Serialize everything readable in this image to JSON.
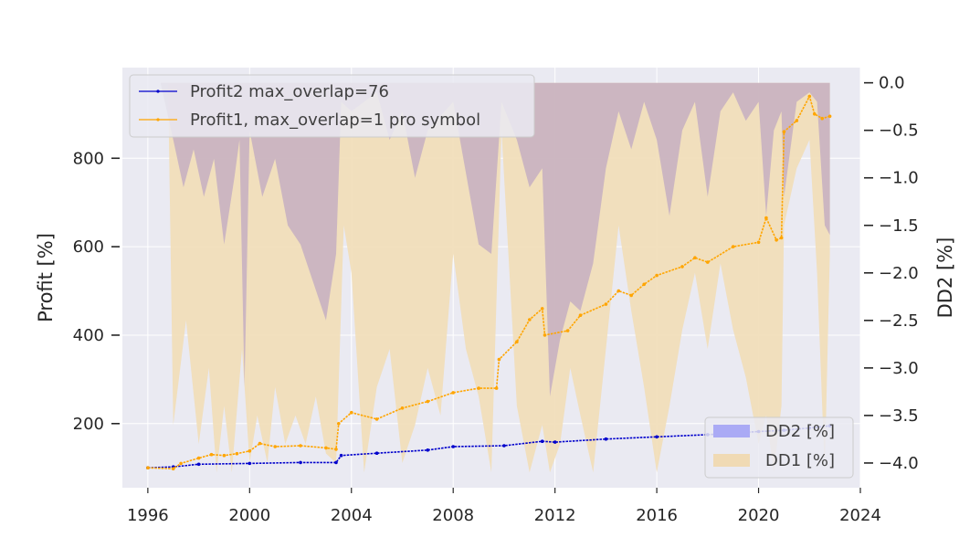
{
  "chart_data": {
    "type": "line",
    "xlim": [
      1995,
      2024
    ],
    "x_ticks": [
      1996,
      2000,
      2004,
      2008,
      2012,
      2016,
      2020,
      2024
    ],
    "left_axis": {
      "label": "Profit [%]",
      "ylim": [
        55,
        1005
      ],
      "ticks": [
        200,
        400,
        600,
        800
      ]
    },
    "right_axis": {
      "label": "DD2 [%]",
      "ylim": [
        -4.26,
        0.16
      ],
      "ticks": [
        0.0,
        -0.5,
        -1.0,
        -1.5,
        -2.0,
        -2.5,
        -3.0,
        -3.5,
        -4.0
      ]
    },
    "grid": true,
    "legend_top_left": [
      {
        "name": "Profit2 max_overlap=76",
        "color": "#0000cc"
      },
      {
        "name": "Profit1, max_overlap=1 pro symbol",
        "color": "#ffa500"
      }
    ],
    "legend_bottom_right": [
      {
        "name": "DD2 [%]",
        "color": "#aaaaf5"
      },
      {
        "name": "DD1 [%]",
        "color": "#f0dab4"
      }
    ],
    "colors": {
      "profit2": "#0000cc",
      "profit1": "#ffa500",
      "dd2": "#b8b4ee",
      "dd1": "#f1ddb8",
      "overlap": "#c6b0c2",
      "plot_bg": "#eaeaf2"
    },
    "series": [
      {
        "name": "Profit2 max_overlap=76",
        "axis": "left",
        "x": [
          1996.0,
          1997.0,
          1998.0,
          2000.0,
          2002.0,
          2003.4,
          2003.6,
          2005.0,
          2007.0,
          2008.0,
          2010.0,
          2011.5,
          2012.0,
          2014.0,
          2016.0,
          2018.0,
          2020.0,
          2021.0,
          2022.0,
          2022.8
        ],
        "y": [
          100,
          102,
          108,
          110,
          112,
          112,
          128,
          133,
          140,
          148,
          150,
          160,
          158,
          165,
          170,
          175,
          182,
          185,
          190,
          195
        ]
      },
      {
        "name": "Profit1, max_overlap=1 pro symbol",
        "axis": "left",
        "x": [
          1996.0,
          1997.0,
          1997.3,
          1998.0,
          1998.5,
          1999.0,
          1999.5,
          2000.0,
          2000.4,
          2001.0,
          2002.0,
          2003.0,
          2003.4,
          2003.5,
          2004.0,
          2005.0,
          2006.0,
          2007.0,
          2008.0,
          2009.0,
          2009.7,
          2009.8,
          2010.5,
          2011.0,
          2011.5,
          2011.6,
          2012.5,
          2013.0,
          2014.0,
          2014.5,
          2015.0,
          2015.5,
          2016.0,
          2017.0,
          2017.5,
          2018.0,
          2019.0,
          2020.0,
          2020.3,
          2020.7,
          2020.9,
          2021.0,
          2021.5,
          2022.0,
          2022.2,
          2022.5,
          2022.8
        ],
        "y": [
          100,
          98,
          110,
          122,
          130,
          128,
          132,
          138,
          155,
          148,
          150,
          145,
          142,
          200,
          225,
          210,
          235,
          250,
          270,
          280,
          280,
          345,
          385,
          435,
          460,
          400,
          410,
          445,
          470,
          500,
          490,
          515,
          535,
          555,
          575,
          565,
          600,
          610,
          665,
          615,
          620,
          860,
          885,
          940,
          900,
          890,
          895
        ]
      }
    ],
    "drawdown_series": [
      {
        "name": "DD2 [%]",
        "axis": "right",
        "x": [
          1996.5,
          1997.0,
          1997.4,
          1997.8,
          1998.2,
          1998.6,
          1999.0,
          1999.4,
          1999.6,
          1999.8,
          2000.0,
          2000.5,
          2001.0,
          2001.5,
          2002.0,
          2002.5,
          2003.0,
          2003.4,
          2003.6,
          2004.0,
          2005.0,
          2005.5,
          2006.0,
          2006.5,
          2007.0,
          2008.0,
          2009.0,
          2009.5,
          2009.9,
          2010.5,
          2011.0,
          2011.5,
          2011.8,
          2012.2,
          2012.6,
          2013.0,
          2013.5,
          2014.0,
          2014.5,
          2015.0,
          2015.5,
          2016.0,
          2016.5,
          2017.0,
          2017.5,
          2018.0,
          2018.5,
          2019.0,
          2019.5,
          2020.0,
          2020.3,
          2020.6,
          2020.9,
          2021.0,
          2021.5,
          2022.0,
          2022.3,
          2022.6,
          2022.8
        ],
        "y": [
          0.0,
          -0.6,
          -1.1,
          -0.7,
          -1.2,
          -0.8,
          -1.7,
          -1.0,
          -0.6,
          -3.2,
          -0.5,
          -1.2,
          -0.8,
          -1.5,
          -1.7,
          -2.1,
          -2.5,
          -1.8,
          -0.2,
          -0.3,
          -0.1,
          -0.6,
          -0.3,
          -1.0,
          -0.5,
          -0.2,
          -1.7,
          -1.8,
          -0.2,
          -0.6,
          -1.1,
          -0.9,
          -3.3,
          -2.7,
          -2.3,
          -2.4,
          -1.9,
          -0.9,
          -0.3,
          -0.7,
          -0.2,
          -0.6,
          -1.4,
          -0.5,
          -0.2,
          -1.2,
          -0.3,
          -0.1,
          -0.4,
          -0.2,
          -1.4,
          -0.5,
          -0.3,
          -1.2,
          -0.2,
          -0.1,
          -0.2,
          -1.5,
          -1.6
        ]
      },
      {
        "name": "DD1 [%]",
        "axis": "right",
        "x": [
          1996.8,
          1997.0,
          1997.5,
          1998.0,
          1998.4,
          1998.7,
          1999.0,
          1999.3,
          1999.7,
          2000.0,
          2000.3,
          2000.7,
          2001.0,
          2001.4,
          2001.8,
          2002.2,
          2002.6,
          2003.0,
          2003.4,
          2003.7,
          2004.0,
          2004.5,
          2005.0,
          2005.5,
          2006.0,
          2006.5,
          2007.0,
          2007.5,
          2008.0,
          2008.5,
          2009.0,
          2009.5,
          2009.9,
          2010.5,
          2011.0,
          2011.5,
          2011.8,
          2012.2,
          2012.6,
          2013.0,
          2013.5,
          2014.0,
          2014.5,
          2015.0,
          2015.5,
          2016.0,
          2016.5,
          2017.0,
          2017.5,
          2018.0,
          2018.5,
          2019.0,
          2019.5,
          2020.0,
          2020.3,
          2020.6,
          2020.9,
          2021.0,
          2021.5,
          2022.0,
          2022.3,
          2022.6,
          2022.8
        ],
        "y": [
          -0.1,
          -3.6,
          -2.5,
          -3.8,
          -3.0,
          -4.1,
          -3.4,
          -4.1,
          -2.8,
          -4.0,
          -3.5,
          -4.0,
          -3.2,
          -3.8,
          -3.5,
          -3.8,
          -3.3,
          -3.9,
          -4.0,
          -1.5,
          -2.0,
          -4.1,
          -3.2,
          -2.8,
          -4.0,
          -3.6,
          -3.0,
          -3.5,
          -1.8,
          -2.8,
          -3.3,
          -4.1,
          -0.5,
          -3.4,
          -4.1,
          -3.6,
          -4.1,
          -3.8,
          -3.0,
          -3.5,
          -4.1,
          -2.8,
          -1.5,
          -2.4,
          -3.2,
          -4.1,
          -3.4,
          -2.6,
          -2.0,
          -2.8,
          -1.9,
          -2.6,
          -3.1,
          -3.8,
          -3.5,
          -4.1,
          -3.4,
          -1.5,
          -0.9,
          -0.6,
          -2.0,
          -4.1,
          -1.8
        ]
      }
    ]
  }
}
